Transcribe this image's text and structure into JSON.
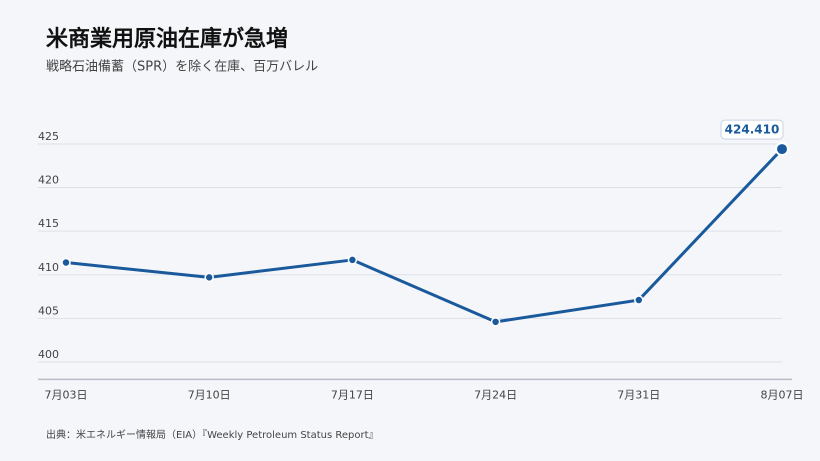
{
  "chart_data": {
    "type": "line",
    "title": "米商業用原油在庫が急増",
    "subtitle": "戦略石油備蓄（SPR）を除く在庫、百万バレル",
    "source": "出典：米エネルギー情報局（EIA）『Weekly Petroleum Status Report』",
    "categories": [
      "7月03日",
      "7月10日",
      "7月17日",
      "7月24日",
      "7月31日",
      "8月07日"
    ],
    "series": [
      {
        "color": "#1a5a9c",
        "values": [
          411.4,
          409.7,
          411.7,
          404.6,
          407.1,
          424.41
        ],
        "value_labels": [
          null,
          null,
          null,
          null,
          null,
          "424.410"
        ]
      }
    ],
    "ylim": [
      398,
      427
    ],
    "yticks": [
      400,
      405,
      410,
      415,
      420,
      425
    ],
    "grid": true
  }
}
